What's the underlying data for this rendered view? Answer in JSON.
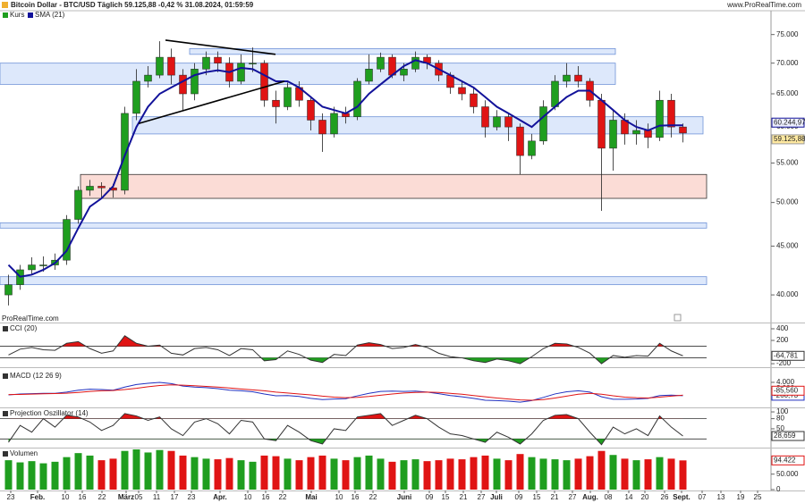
{
  "header": {
    "title": "Bitcoin Dollar - BTC/USD Täglich 59.125,88 -0,42 % 31.08.2024, 01:59:59",
    "website": "www.ProRealTime.com",
    "watermark": "ProRealTime.com"
  },
  "x_axis": {
    "labels": [
      "23",
      "Feb.",
      "10",
      "16",
      "22",
      "März",
      "05",
      "11",
      "17",
      "23",
      "Apr.",
      "10",
      "16",
      "22",
      "Mai",
      "10",
      "16",
      "22",
      "Juni",
      "09",
      "15",
      "21",
      "27",
      "Juli",
      "09",
      "15",
      "21",
      "27",
      "Aug.",
      "08",
      "14",
      "20",
      "26",
      "Sept.",
      "07",
      "13",
      "19",
      "25"
    ]
  },
  "chart_data": [
    {
      "type": "candlestick",
      "name": "Kurs",
      "log_scale": true,
      "up_color": "#1f9e1f",
      "down_color": "#e01414",
      "open": [
        40000,
        41000,
        42500,
        43000,
        43000,
        43500,
        48000,
        51500,
        52000,
        51800,
        51500,
        62000,
        67000,
        68000,
        71000,
        68000,
        65000,
        69000,
        71000,
        70000,
        67000,
        70000,
        70000,
        64000,
        63000,
        66000,
        64000,
        61000,
        59000,
        62000,
        61500,
        67000,
        69000,
        71000,
        68000,
        69000,
        71000,
        70000,
        68000,
        66000,
        65000,
        63000,
        60000,
        61500,
        60000,
        56000,
        58000,
        63000,
        67000,
        68000,
        67000,
        64000,
        57000,
        61000,
        59000,
        59500,
        58500,
        64000,
        60000
      ],
      "high": [
        42000,
        43000,
        43800,
        43900,
        44200,
        48500,
        52000,
        52800,
        52500,
        52300,
        63000,
        69000,
        69500,
        73800,
        72500,
        69000,
        70000,
        72000,
        72000,
        71000,
        71500,
        72700,
        70500,
        65500,
        66800,
        67000,
        64500,
        62000,
        63000,
        63000,
        67500,
        71500,
        71800,
        71500,
        70000,
        72000,
        71500,
        70500,
        68500,
        67000,
        66000,
        64000,
        62500,
        62000,
        60500,
        59000,
        64000,
        68000,
        70000,
        69500,
        67500,
        65000,
        62500,
        62000,
        61000,
        60500,
        65500,
        65000,
        60500
      ],
      "low": [
        39000,
        40500,
        42000,
        42300,
        42500,
        43000,
        47500,
        50800,
        50500,
        50600,
        51000,
        61000,
        66000,
        67500,
        66500,
        62500,
        64000,
        68000,
        68500,
        66000,
        66500,
        68500,
        63000,
        60500,
        62500,
        63000,
        59500,
        56500,
        58500,
        60500,
        61000,
        66500,
        68500,
        67500,
        67000,
        68500,
        69000,
        67000,
        65000,
        64000,
        62000,
        58500,
        59500,
        58000,
        53500,
        55500,
        57500,
        62500,
        66000,
        66000,
        63000,
        49000,
        54000,
        57500,
        57500,
        57000,
        58000,
        58500,
        57800
      ],
      "close": [
        41000,
        42500,
        43000,
        43000,
        43500,
        48000,
        51500,
        52000,
        51800,
        51500,
        62000,
        67000,
        68000,
        71000,
        68000,
        65000,
        69000,
        71000,
        70000,
        67000,
        70000,
        70000,
        64000,
        63000,
        66000,
        64000,
        61000,
        59000,
        62000,
        61500,
        67000,
        69000,
        71000,
        68000,
        69000,
        71000,
        70000,
        68000,
        66000,
        65000,
        63000,
        60000,
        61500,
        60000,
        56000,
        58000,
        63000,
        67000,
        68000,
        67000,
        64000,
        57000,
        61000,
        59000,
        59500,
        58500,
        64000,
        60000,
        59125.88
      ],
      "close_label": "59.125,88",
      "sma": {
        "name": "SMA (21)",
        "color": "#12129a",
        "last_label": "60.244,97",
        "values": [
          43000,
          41800,
          42000,
          42500,
          43200,
          44500,
          47000,
          49500,
          50500,
          52000,
          56000,
          60000,
          63000,
          65000,
          66000,
          67000,
          68000,
          68500,
          68800,
          68500,
          69200,
          69000,
          68000,
          67000,
          67000,
          66000,
          64500,
          63000,
          62500,
          62000,
          63000,
          65000,
          66500,
          68000,
          69500,
          70500,
          70000,
          69000,
          68000,
          67000,
          66000,
          64500,
          63000,
          62000,
          61000,
          60000,
          61500,
          63000,
          64500,
          65500,
          65500,
          64000,
          62500,
          61000,
          60000,
          59500,
          60200,
          60245,
          60244.97
        ]
      },
      "zones": [
        {
          "low": 71500,
          "high": 72500,
          "color": "#dde8fb"
        },
        {
          "low": 66500,
          "high": 70000,
          "color": "#dde8fb"
        },
        {
          "low": 59000,
          "high": 61500,
          "color": "#dde8fb"
        },
        {
          "low": 50500,
          "high": 53500,
          "color": "#fbdcd6"
        },
        {
          "low": 47000,
          "high": 47600,
          "color": "#dde8fb"
        },
        {
          "low": 41000,
          "high": 41800,
          "color": "#dde8fb"
        }
      ],
      "trendlines": [
        {
          "start": 74000,
          "end": 71500
        },
        {
          "start": 60500,
          "end": 67000
        }
      ],
      "ylim": [
        37500,
        79100
      ],
      "yticks": [
        {
          "value": 40000,
          "label": "40.000"
        },
        {
          "value": 45000,
          "label": "45.000"
        },
        {
          "value": 50000,
          "label": "50.000"
        },
        {
          "value": 55000,
          "label": "55.000"
        },
        {
          "value": 60000,
          "label": "60.000"
        },
        {
          "value": 65000,
          "label": "65.000"
        },
        {
          "value": 70000,
          "label": "70.000"
        },
        {
          "value": 75000,
          "label": "75.000"
        }
      ]
    },
    {
      "type": "line",
      "title": "CCI (20)",
      "ylim": [
        -245,
        477
      ],
      "yticks": [
        400,
        200,
        -200
      ],
      "levels": [
        100,
        -100
      ],
      "level_colors": [
        "#e01414",
        "#1f9e1f"
      ],
      "series": [
        {
          "color": "#333333",
          "last_label": "-64,781",
          "values": [
            -50,
            50,
            80,
            40,
            30,
            150,
            180,
            60,
            -20,
            20,
            280,
            150,
            100,
            120,
            -20,
            -50,
            60,
            80,
            40,
            -60,
            60,
            40,
            -150,
            -130,
            20,
            -40,
            -140,
            -180,
            -40,
            -60,
            120,
            160,
            130,
            60,
            80,
            130,
            80,
            -20,
            -80,
            -100,
            -150,
            -180,
            -120,
            -150,
            -200,
            -80,
            60,
            150,
            140,
            80,
            -20,
            -200,
            -60,
            -90,
            -60,
            -70,
            150,
            20,
            -64.781
          ]
        }
      ]
    },
    {
      "type": "line",
      "title": "MACD (12 26 9)",
      "ylim": [
        -3700,
        7400
      ],
      "yticks": [
        {
          "value": 4000,
          "label": "4.000"
        },
        {
          "value": 2000,
          "label": "2.000"
        }
      ],
      "series": [
        {
          "color": "#2030c0",
          "last_label": "-260,73",
          "values": [
            0,
            300,
            400,
            500,
            500,
            900,
            1500,
            1800,
            1700,
            1500,
            2500,
            3300,
            3700,
            4000,
            3600,
            2800,
            2500,
            2300,
            2000,
            1500,
            1300,
            1000,
            300,
            -300,
            -200,
            -500,
            -1100,
            -1500,
            -1300,
            -1200,
            -300,
            500,
            1100,
            1200,
            1100,
            1200,
            900,
            400,
            -200,
            -600,
            -1100,
            -1700,
            -1800,
            -2000,
            -2300,
            -1800,
            -800,
            300,
            1000,
            1300,
            900,
            -600,
            -1400,
            -1400,
            -1300,
            -1100,
            -200,
            -60,
            -260.73
          ]
        },
        {
          "color": "#e01414",
          "last_label": "-85,560",
          "values": [
            100,
            150,
            250,
            350,
            420,
            550,
            800,
            1100,
            1300,
            1400,
            1700,
            2100,
            2600,
            3000,
            3200,
            3100,
            2900,
            2700,
            2500,
            2200,
            1900,
            1600,
            1300,
            900,
            600,
            300,
            0,
            -400,
            -700,
            -900,
            -800,
            -500,
            -100,
            300,
            600,
            800,
            900,
            800,
            500,
            200,
            -200,
            -600,
            -1000,
            -1300,
            -1600,
            -1700,
            -1500,
            -1000,
            -400,
            200,
            500,
            200,
            -300,
            -700,
            -900,
            -1000,
            -700,
            -400,
            -85.56
          ]
        }
      ]
    },
    {
      "type": "line",
      "title": "Projection Oszillator (14)",
      "ylim": [
        -3,
        108
      ],
      "yticks": [
        100,
        80,
        50,
        20
      ],
      "levels": [
        80,
        20
      ],
      "level_colors": [
        "#e01414",
        "#1f9e1f"
      ],
      "series": [
        {
          "color": "#333333",
          "last_label": "28,659",
          "values": [
            10,
            60,
            40,
            80,
            55,
            90,
            85,
            70,
            45,
            60,
            95,
            88,
            75,
            85,
            50,
            30,
            70,
            80,
            65,
            35,
            75,
            70,
            20,
            15,
            60,
            40,
            15,
            5,
            50,
            45,
            85,
            90,
            95,
            60,
            75,
            90,
            80,
            55,
            35,
            30,
            20,
            10,
            40,
            25,
            5,
            35,
            75,
            90,
            92,
            80,
            40,
            3,
            55,
            35,
            50,
            30,
            88,
            55,
            28.659
          ]
        }
      ]
    },
    {
      "type": "bar",
      "title": "Volumen",
      "ylim": [
        0,
        130000
      ],
      "yticks": [
        {
          "value": 50000,
          "label": "50.000"
        },
        0
      ],
      "last_label": "94.422",
      "values": [
        95000,
        88000,
        92000,
        85000,
        90000,
        105000,
        118000,
        110000,
        95000,
        100000,
        125000,
        130000,
        120000,
        128000,
        125000,
        110000,
        105000,
        100000,
        98000,
        102000,
        95000,
        90000,
        110000,
        108000,
        100000,
        95000,
        105000,
        110000,
        100000,
        95000,
        105000,
        110000,
        100000,
        90000,
        95000,
        98000,
        92000,
        95000,
        100000,
        98000,
        105000,
        110000,
        100000,
        95000,
        115000,
        105000,
        100000,
        98000,
        95000,
        100000,
        108000,
        125000,
        112000,
        100000,
        95000,
        98000,
        105000,
        100000,
        94422
      ]
    }
  ]
}
